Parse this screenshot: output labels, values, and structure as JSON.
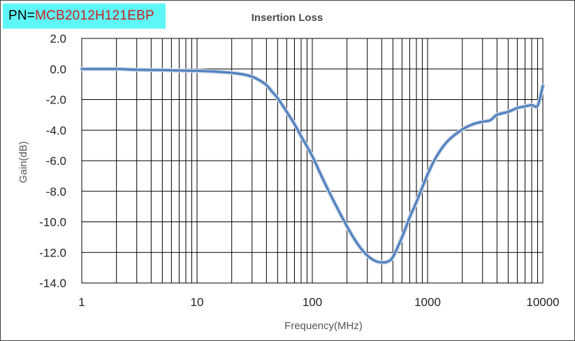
{
  "header": {
    "pn_label": "PN=",
    "pn_value": "MCB2012H121EBP"
  },
  "chart_data": {
    "type": "line",
    "title": "Insertion Loss",
    "xlabel": "Frequency(MHz)",
    "ylabel": "Gain(dB)",
    "xscale": "log",
    "xlim": [
      1,
      10000
    ],
    "ylim": [
      -14,
      2
    ],
    "grid": true,
    "legend": "none",
    "x_ticks": [
      1,
      10,
      100,
      1000,
      10000
    ],
    "x_tick_labels": [
      "1",
      "10",
      "100",
      "1000",
      "10000"
    ],
    "y_ticks": [
      2,
      0,
      -2,
      -4,
      -6,
      -8,
      -10,
      -12,
      -14
    ],
    "y_tick_labels": [
      "2.0",
      "0.0",
      "-2.0",
      "-4.0",
      "-6.0",
      "-8.0",
      "-10.0",
      "-12.0",
      "-14.0"
    ],
    "line_color": "#4f7fbd",
    "series": [
      {
        "x": [
          1,
          2,
          3,
          5,
          7,
          10,
          15,
          20,
          25,
          30,
          35,
          40,
          45,
          50,
          60,
          70,
          80,
          100,
          120,
          150,
          200,
          250,
          300,
          350,
          400,
          450,
          500,
          600,
          700,
          800,
          1000,
          1200,
          1500,
          2000,
          2500,
          3000,
          3500,
          4000,
          5000,
          6000,
          7000,
          8000,
          9000,
          10000
        ],
        "y": [
          0.0,
          0.0,
          -0.05,
          -0.07,
          -0.1,
          -0.12,
          -0.18,
          -0.25,
          -0.35,
          -0.5,
          -0.75,
          -1.05,
          -1.5,
          -1.9,
          -2.8,
          -3.6,
          -4.4,
          -5.7,
          -7.0,
          -8.5,
          -10.3,
          -11.5,
          -12.2,
          -12.55,
          -12.65,
          -12.6,
          -12.3,
          -11.0,
          -9.7,
          -8.7,
          -6.9,
          -5.7,
          -4.7,
          -3.95,
          -3.6,
          -3.45,
          -3.35,
          -3.0,
          -2.8,
          -2.55,
          -2.45,
          -2.35,
          -2.4,
          -1.1
        ]
      }
    ]
  }
}
